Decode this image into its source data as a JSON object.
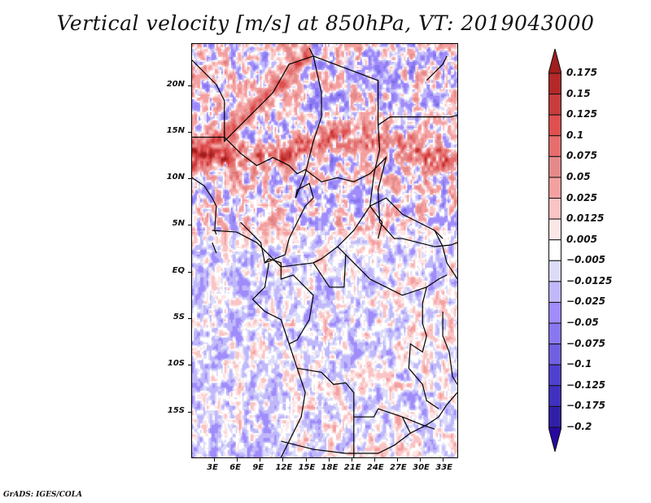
{
  "title": "Vertical velocity [m/s] at 850hPa, VT: 2019043000",
  "credit": "GrADS: IGES/COLA",
  "map": {
    "variable": "Vertical velocity",
    "units": "m/s",
    "level": "850hPa",
    "valid_time": "2019043000",
    "lat_range": [
      -20,
      24.5
    ],
    "lon_range": [
      0,
      35
    ],
    "y_ticks": [
      {
        "label": "20N",
        "lat": 20
      },
      {
        "label": "15N",
        "lat": 15
      },
      {
        "label": "10N",
        "lat": 10
      },
      {
        "label": "5N",
        "lat": 5
      },
      {
        "label": "EQ",
        "lat": 0
      },
      {
        "label": "5S",
        "lat": -5
      },
      {
        "label": "10S",
        "lat": -10
      },
      {
        "label": "15S",
        "lat": -15
      }
    ],
    "x_ticks": [
      {
        "label": "3E",
        "lon": 3
      },
      {
        "label": "6E",
        "lon": 6
      },
      {
        "label": "9E",
        "lon": 9
      },
      {
        "label": "12E",
        "lon": 12
      },
      {
        "label": "15E",
        "lon": 15
      },
      {
        "label": "18E",
        "lon": 18
      },
      {
        "label": "21E",
        "lon": 21
      },
      {
        "label": "24E",
        "lon": 24
      },
      {
        "label": "27E",
        "lon": 27
      },
      {
        "label": "30E",
        "lon": 30
      },
      {
        "label": "33E",
        "lon": 33
      }
    ]
  },
  "colorbar": {
    "orientation": "vertical",
    "extend": "both",
    "levels": [
      {
        "label": "0.175",
        "value": 0.175
      },
      {
        "label": "0.15",
        "value": 0.15
      },
      {
        "label": "0.125",
        "value": 0.125
      },
      {
        "label": "0.1",
        "value": 0.1
      },
      {
        "label": "0.075",
        "value": 0.075
      },
      {
        "label": "0.05",
        "value": 0.05
      },
      {
        "label": "0.025",
        "value": 0.025
      },
      {
        "label": "0.0125",
        "value": 0.0125
      },
      {
        "label": "0.005",
        "value": 0.005
      },
      {
        "label": "−0.005",
        "value": -0.005
      },
      {
        "label": "−0.0125",
        "value": -0.0125
      },
      {
        "label": "−0.025",
        "value": -0.025
      },
      {
        "label": "−0.05",
        "value": -0.05
      },
      {
        "label": "−0.075",
        "value": -0.075
      },
      {
        "label": "−0.1",
        "value": -0.1
      },
      {
        "label": "−0.125",
        "value": -0.125
      },
      {
        "label": "−0.175",
        "value": -0.175
      },
      {
        "label": "−0.2",
        "value": -0.2
      }
    ],
    "colors_top_to_bottom": [
      "#a01e1e",
      "#b42828",
      "#c83c3c",
      "#e05050",
      "#e66e6e",
      "#e48a8a",
      "#f4a0a0",
      "#fac4c4",
      "#fde6e6",
      "#ffffff",
      "#dcdcfa",
      "#c0b8fa",
      "#a08cfa",
      "#8878f0",
      "#7060e0",
      "#5040d0",
      "#4030c0",
      "#3020a8",
      "#2808a0"
    ]
  }
}
